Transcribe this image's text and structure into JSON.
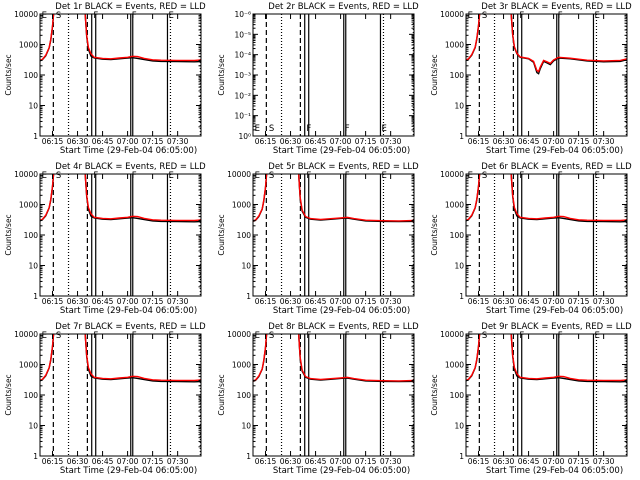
{
  "chart_data": {
    "type": "line",
    "layout": "3x3 grid",
    "xlabel": "Start Time (29-Feb-04 06:05:00)",
    "x_units": "minutes after 06:00",
    "xlim": [
      7.5,
      104
    ],
    "x_ticks": [
      {
        "v": 15,
        "label": "06:15"
      },
      {
        "v": 30,
        "label": "06:30"
      },
      {
        "v": 45,
        "label": "06:45"
      },
      {
        "v": 60,
        "label": "07:00"
      },
      {
        "v": 75,
        "label": "07:15"
      },
      {
        "v": 90,
        "label": "07:30"
      }
    ],
    "ylabel": "Counts/sec",
    "yscale": "log",
    "ylim": [
      1,
      10000
    ],
    "y_ticks": [
      {
        "v": 1,
        "label": "1"
      },
      {
        "v": 10,
        "label": "10"
      },
      {
        "v": 100,
        "label": "100"
      },
      {
        "v": 1000,
        "label": "1000"
      },
      {
        "v": 10000,
        "label": "10000"
      }
    ],
    "y_ticks_empty": [
      {
        "v": 1,
        "label": "10⁰"
      },
      {
        "v": 10,
        "label": "10⁻¹"
      },
      {
        "v": 100,
        "label": "10⁻²"
      },
      {
        "v": 1000,
        "label": "10⁻³"
      },
      {
        "v": 10000,
        "label": "10⁻⁴"
      },
      {
        "v": 100000,
        "label": "10⁻⁵"
      },
      {
        "v": 1000000,
        "label": "10⁻⁶"
      }
    ],
    "markers": [
      {
        "t": 15.5,
        "style": "dashed"
      },
      {
        "t": 24.6,
        "style": "dotted"
      },
      {
        "t": 35.9,
        "style": "dashed"
      },
      {
        "t": 38.5,
        "style": "solid"
      },
      {
        "t": 40.9,
        "style": "solid"
      },
      {
        "t": 61.9,
        "style": "solid"
      },
      {
        "t": 63.1,
        "style": "solid"
      },
      {
        "t": 83.9,
        "style": "solid"
      },
      {
        "t": 85.7,
        "style": "dotted"
      },
      {
        "t": 103.6,
        "style": "dotted"
      }
    ],
    "marker_labels": [
      {
        "t": 8.5,
        "label": "E"
      },
      {
        "t": 17,
        "label": "S"
      },
      {
        "t": 39.5,
        "label": "F"
      },
      {
        "t": 62.5,
        "label": "F"
      },
      {
        "t": 84.5,
        "label": "E"
      }
    ],
    "series_colors": {
      "Events": "#000000",
      "LLD": "#ff0000"
    },
    "panels": [
      {
        "title": "Det 1r BLACK = Events, RED = LLD",
        "variant": "a"
      },
      {
        "title": "Det 2r BLACK = Events, RED = LLD",
        "variant": "empty"
      },
      {
        "title": "Det 3r BLACK = Events, RED = LLD",
        "variant": "dip"
      },
      {
        "title": "Det 4r BLACK = Events, RED = LLD",
        "variant": "a"
      },
      {
        "title": "Det 5r BLACK = Events, RED = LLD",
        "variant": "b"
      },
      {
        "title": "Det 6r BLACK = Events, RED = LLD",
        "variant": "a"
      },
      {
        "title": "Det 7r BLACK = Events, RED = LLD",
        "variant": "a"
      },
      {
        "title": "Det 8r BLACK = Events, RED = LLD",
        "variant": "b"
      },
      {
        "title": "Det 9r BLACK = Events, RED = LLD",
        "variant": "a"
      }
    ],
    "series": {
      "a": {
        "Events": [
          [
            [
              7.5,
              290
            ],
            [
              9,
              320
            ],
            [
              11,
              430
            ],
            [
              13,
              780
            ],
            [
              14,
              1400
            ],
            [
              15,
              3800
            ],
            [
              15.8,
              12000
            ]
          ],
          [
            [
              34.5,
              12000
            ],
            [
              35.5,
              1800
            ],
            [
              36.5,
              700
            ],
            [
              38,
              420
            ],
            [
              40,
              360
            ],
            [
              45,
              330
            ],
            [
              50,
              320
            ],
            [
              55,
              340
            ],
            [
              60,
              360
            ],
            [
              63,
              370
            ],
            [
              66,
              350
            ],
            [
              70,
              320
            ],
            [
              75,
              290
            ],
            [
              80,
              280
            ],
            [
              90,
              275
            ],
            [
              100,
              270
            ],
            [
              104,
              275
            ]
          ]
        ],
        "LLD": [
          [
            [
              7.5,
              300
            ],
            [
              9,
              330
            ],
            [
              11,
              450
            ],
            [
              13,
              800
            ],
            [
              14,
              1500
            ],
            [
              15,
              4000
            ],
            [
              15.8,
              12000
            ]
          ],
          [
            [
              34.5,
              12000
            ],
            [
              35.5,
              2000
            ],
            [
              36.5,
              800
            ],
            [
              38,
              500
            ],
            [
              40,
              380
            ],
            [
              45,
              350
            ],
            [
              50,
              340
            ],
            [
              55,
              360
            ],
            [
              60,
              380
            ],
            [
              63,
              410
            ],
            [
              66,
              400
            ],
            [
              70,
              350
            ],
            [
              75,
              315
            ],
            [
              80,
              305
            ],
            [
              90,
              300
            ],
            [
              100,
              300
            ],
            [
              104,
              310
            ]
          ]
        ]
      },
      "b": {
        "Events": [
          [
            [
              7.5,
              280
            ],
            [
              9,
              300
            ],
            [
              11,
              400
            ],
            [
              13,
              700
            ],
            [
              14,
              1300
            ],
            [
              15,
              3500
            ],
            [
              15.8,
              12000
            ]
          ],
          [
            [
              34.8,
              12000
            ],
            [
              35.8,
              1500
            ],
            [
              37,
              600
            ],
            [
              39,
              380
            ],
            [
              42,
              330
            ],
            [
              48,
              310
            ],
            [
              55,
              330
            ],
            [
              60,
              350
            ],
            [
              64,
              360
            ],
            [
              68,
              330
            ],
            [
              75,
              290
            ],
            [
              85,
              280
            ],
            [
              95,
              275
            ],
            [
              104,
              280
            ]
          ]
        ],
        "LLD": [
          [
            [
              7.5,
              290
            ],
            [
              9,
              310
            ],
            [
              11,
              420
            ],
            [
              13,
              720
            ],
            [
              14,
              1400
            ],
            [
              15,
              3700
            ],
            [
              15.8,
              12000
            ]
          ],
          [
            [
              34.8,
              12000
            ],
            [
              35.8,
              1700
            ],
            [
              37,
              650
            ],
            [
              39,
              400
            ],
            [
              42,
              345
            ],
            [
              48,
              325
            ],
            [
              55,
              345
            ],
            [
              60,
              365
            ],
            [
              64,
              380
            ],
            [
              68,
              345
            ],
            [
              75,
              305
            ],
            [
              85,
              295
            ],
            [
              95,
              290
            ],
            [
              104,
              300
            ]
          ]
        ]
      },
      "dip": {
        "Events": [
          [
            [
              7.5,
              300
            ],
            [
              9,
              330
            ],
            [
              11,
              450
            ],
            [
              13,
              800
            ],
            [
              14,
              1500
            ],
            [
              15,
              4000
            ],
            [
              15.8,
              12000
            ]
          ],
          [
            [
              34.5,
              12000
            ],
            [
              35.5,
              2000
            ],
            [
              36.5,
              800
            ],
            [
              38,
              500
            ],
            [
              40,
              380
            ],
            [
              45,
              340
            ],
            [
              48,
              260
            ],
            [
              50,
              120
            ],
            [
              51,
              110
            ],
            [
              52,
              160
            ],
            [
              54,
              280
            ],
            [
              56,
              250
            ],
            [
              58,
              220
            ],
            [
              60,
              290
            ],
            [
              63,
              360
            ],
            [
              70,
              340
            ],
            [
              80,
              290
            ],
            [
              90,
              270
            ],
            [
              100,
              280
            ],
            [
              104,
              320
            ]
          ]
        ],
        "LLD": [
          [
            [
              7.5,
              310
            ],
            [
              9,
              340
            ],
            [
              11,
              470
            ],
            [
              13,
              820
            ],
            [
              14,
              1600
            ],
            [
              15,
              4200
            ],
            [
              15.8,
              12000
            ]
          ],
          [
            [
              34.5,
              12000
            ],
            [
              35.5,
              2100
            ],
            [
              36.5,
              850
            ],
            [
              38,
              520
            ],
            [
              40,
              390
            ],
            [
              45,
              350
            ],
            [
              48,
              280
            ],
            [
              50,
              140
            ],
            [
              51,
              130
            ],
            [
              52,
              180
            ],
            [
              54,
              300
            ],
            [
              56,
              270
            ],
            [
              58,
              240
            ],
            [
              60,
              310
            ],
            [
              63,
              380
            ],
            [
              70,
              355
            ],
            [
              80,
              305
            ],
            [
              90,
              290
            ],
            [
              100,
              300
            ],
            [
              104,
              340
            ]
          ]
        ]
      }
    }
  }
}
